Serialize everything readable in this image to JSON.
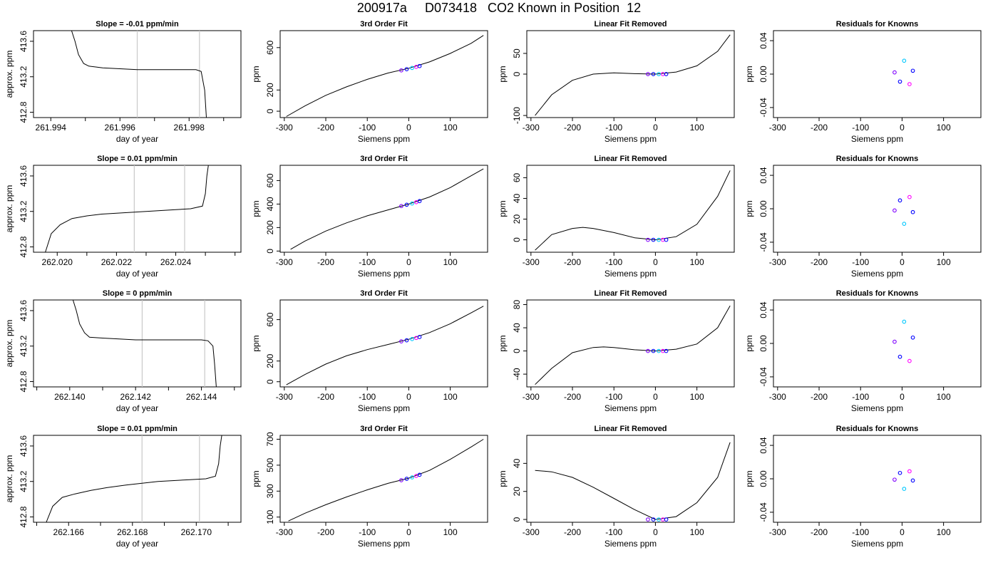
{
  "page_title": "200917a     D073418   CO2 Known in Position  12",
  "chart_data": [
    {
      "type": "line",
      "title": "Slope =  -0.01  ppm/min",
      "xlabel": "day of year",
      "ylabel": "approx. ppm",
      "x_ticks": [
        "261.994",
        "261.996",
        "261.998"
      ],
      "y_ticks": [
        "412.8",
        "413.2",
        "413.6"
      ],
      "xlim": [
        261.9935,
        261.9995
      ],
      "ylim": [
        412.74,
        413.72
      ],
      "vlines": [
        261.9965,
        261.9983
      ],
      "trace": {
        "x": [
          261.9946,
          261.9947,
          261.9948,
          261.99495,
          261.9951,
          261.9953,
          261.9955,
          261.996,
          261.9965,
          261.997,
          261.9975,
          261.998,
          261.9982,
          261.99835,
          261.99845,
          261.9985
        ],
        "y": [
          413.72,
          413.6,
          413.45,
          413.35,
          413.32,
          413.31,
          413.3,
          413.29,
          413.28,
          413.28,
          413.28,
          413.28,
          413.28,
          413.26,
          413.05,
          412.74
        ]
      }
    },
    {
      "type": "line",
      "title": "3rd Order Fit",
      "xlabel": "Siemens ppm",
      "ylabel": "ppm",
      "x_ticks": [
        "-300",
        "-200",
        "-100",
        "0",
        "100"
      ],
      "y_ticks": [
        "0",
        "200",
        "600"
      ],
      "xlim": [
        -310,
        190
      ],
      "ylim": [
        -60,
        760
      ],
      "curve": {
        "x": [
          -295,
          -250,
          -200,
          -150,
          -100,
          -50,
          0,
          50,
          100,
          150,
          180
        ],
        "y": [
          -50,
          50,
          150,
          230,
          300,
          360,
          405,
          465,
          545,
          640,
          715
        ]
      },
      "points": {
        "x": [
          -18,
          -5,
          8,
          18,
          26
        ],
        "y": [
          385,
          396,
          408,
          418,
          426
        ]
      }
    },
    {
      "type": "line",
      "title": "Linear Fit Removed",
      "xlabel": "Siemens ppm",
      "ylabel": "ppm",
      "x_ticks": [
        "-300",
        "-200",
        "-100",
        "0",
        "100"
      ],
      "y_ticks": [
        "-100",
        "0",
        "50"
      ],
      "xlim": [
        -310,
        190
      ],
      "ylim": [
        -105,
        105
      ],
      "curve": {
        "x": [
          -290,
          -250,
          -200,
          -150,
          -100,
          -50,
          0,
          50,
          100,
          150,
          180
        ],
        "y": [
          -100,
          -50,
          -15,
          0,
          3,
          1,
          0,
          5,
          20,
          55,
          95
        ]
      },
      "points": {
        "x": [
          -18,
          -5,
          8,
          18,
          26
        ],
        "y": [
          0,
          0,
          0,
          0,
          0
        ]
      }
    },
    {
      "type": "scatter",
      "title": "Residuals for Knowns",
      "xlabel": "Siemens ppm",
      "ylabel": "ppm",
      "x_ticks": [
        "-300",
        "-200",
        "-100",
        "0",
        "100"
      ],
      "y_ticks": [
        "-0.04",
        "0.00",
        "0.04"
      ],
      "xlim": [
        -310,
        190
      ],
      "ylim": [
        -0.052,
        0.052
      ],
      "points": {
        "x": [
          -18,
          -5,
          5,
          18,
          26
        ],
        "y": [
          0.002,
          -0.009,
          0.016,
          -0.012,
          0.004
        ]
      }
    },
    {
      "type": "line",
      "title": "Slope =  0.01  ppm/min",
      "xlabel": "day of year",
      "ylabel": "approx. ppm",
      "x_ticks": [
        "262.020",
        "262.022",
        "262.024"
      ],
      "y_ticks": [
        "412.8",
        "413.2",
        "413.6"
      ],
      "xlim": [
        262.0192,
        262.0262
      ],
      "ylim": [
        412.74,
        413.72
      ],
      "vlines": [
        262.0226,
        262.0243
      ],
      "trace": {
        "x": [
          262.0196,
          262.0198,
          262.0201,
          262.0205,
          262.021,
          262.0215,
          262.022,
          262.0225,
          262.023,
          262.0235,
          262.024,
          262.0245,
          262.0249,
          262.025,
          262.02505,
          262.0251
        ],
        "y": [
          412.74,
          412.95,
          413.05,
          413.12,
          413.15,
          413.17,
          413.18,
          413.19,
          413.2,
          413.21,
          413.22,
          413.23,
          413.26,
          413.4,
          413.6,
          413.72
        ]
      }
    },
    {
      "type": "line",
      "title": "3rd Order Fit",
      "xlabel": "Siemens ppm",
      "ylabel": "ppm",
      "x_ticks": [
        "-300",
        "-200",
        "-100",
        "0",
        "100"
      ],
      "y_ticks": [
        "0",
        "200",
        "400",
        "600"
      ],
      "xlim": [
        -310,
        190
      ],
      "ylim": [
        -10,
        730
      ],
      "curve": {
        "x": [
          -285,
          -250,
          -200,
          -150,
          -100,
          -50,
          0,
          50,
          100,
          150,
          180
        ],
        "y": [
          15,
          85,
          170,
          240,
          300,
          350,
          400,
          460,
          540,
          640,
          700
        ]
      },
      "points": {
        "x": [
          -18,
          -5,
          8,
          18,
          26
        ],
        "y": [
          383,
          394,
          405,
          416,
          425
        ]
      }
    },
    {
      "type": "line",
      "title": "Linear Fit Removed",
      "xlabel": "Siemens ppm",
      "ylabel": "ppm",
      "x_ticks": [
        "-300",
        "-200",
        "-100",
        "0",
        "100"
      ],
      "y_ticks": [
        "0",
        "20",
        "40",
        "60"
      ],
      "xlim": [
        -310,
        190
      ],
      "ylim": [
        -12,
        72
      ],
      "curve": {
        "x": [
          -290,
          -250,
          -200,
          -175,
          -150,
          -100,
          -50,
          0,
          50,
          100,
          150,
          180
        ],
        "y": [
          -10,
          5,
          11,
          12,
          11,
          7,
          2,
          0,
          3,
          15,
          42,
          67
        ]
      },
      "points": {
        "x": [
          -18,
          -5,
          8,
          18,
          26
        ],
        "y": [
          0,
          0,
          0,
          0,
          0
        ]
      }
    },
    {
      "type": "scatter",
      "title": "Residuals for Knowns",
      "xlabel": "Siemens ppm",
      "ylabel": "ppm",
      "x_ticks": [
        "-300",
        "-200",
        "-100",
        "0",
        "100"
      ],
      "y_ticks": [
        "-0.04",
        "0.00",
        "0.04"
      ],
      "xlim": [
        -310,
        190
      ],
      "ylim": [
        -0.052,
        0.052
      ],
      "points": {
        "x": [
          -18,
          -5,
          5,
          18,
          26
        ],
        "y": [
          -0.002,
          0.01,
          -0.018,
          0.014,
          -0.004
        ]
      }
    },
    {
      "type": "line",
      "title": "Slope =  0  ppm/min",
      "xlabel": "day of year",
      "ylabel": "approx. ppm",
      "x_ticks": [
        "262.140",
        "262.142",
        "262.144"
      ],
      "y_ticks": [
        "412.8",
        "413.2",
        "413.6"
      ],
      "xlim": [
        262.1389,
        262.1452
      ],
      "ylim": [
        412.74,
        413.72
      ],
      "vlines": [
        262.1422,
        262.1441
      ],
      "trace": {
        "x": [
          262.1401,
          262.1402,
          262.1403,
          262.14045,
          262.1406,
          262.141,
          262.1415,
          262.142,
          262.1425,
          262.143,
          262.1435,
          262.144,
          262.1442,
          262.14435,
          262.1444,
          262.14445
        ],
        "y": [
          413.72,
          413.6,
          413.45,
          413.35,
          413.3,
          413.29,
          413.28,
          413.27,
          413.27,
          413.27,
          413.27,
          413.27,
          413.26,
          413.2,
          413.0,
          412.74
        ]
      }
    },
    {
      "type": "line",
      "title": "3rd Order Fit",
      "xlabel": "Siemens ppm",
      "ylabel": "ppm",
      "x_ticks": [
        "-300",
        "-200",
        "-100",
        "0",
        "100"
      ],
      "y_ticks": [
        "0",
        "200",
        "600"
      ],
      "xlim": [
        -310,
        190
      ],
      "ylim": [
        -50,
        790
      ],
      "curve": {
        "x": [
          -295,
          -250,
          -200,
          -150,
          -100,
          -50,
          0,
          50,
          100,
          150,
          180
        ],
        "y": [
          -30,
          70,
          170,
          250,
          310,
          360,
          410,
          475,
          560,
          665,
          730
        ]
      },
      "points": {
        "x": [
          -18,
          -5,
          8,
          18,
          26
        ],
        "y": [
          390,
          400,
          412,
          423,
          432
        ]
      }
    },
    {
      "type": "line",
      "title": "Linear Fit Removed",
      "xlabel": "Siemens ppm",
      "ylabel": "ppm",
      "x_ticks": [
        "-300",
        "-200",
        "-100",
        "0",
        "100"
      ],
      "y_ticks": [
        "-40",
        "0",
        "40",
        "80"
      ],
      "xlim": [
        -310,
        190
      ],
      "ylim": [
        -62,
        88
      ],
      "curve": {
        "x": [
          -290,
          -250,
          -200,
          -150,
          -125,
          -100,
          -50,
          0,
          50,
          100,
          150,
          180
        ],
        "y": [
          -58,
          -30,
          -3,
          6,
          7,
          6,
          2,
          0,
          3,
          12,
          40,
          78
        ]
      },
      "points": {
        "x": [
          -18,
          -5,
          8,
          18,
          26
        ],
        "y": [
          0,
          0,
          0,
          0,
          0
        ]
      }
    },
    {
      "type": "scatter",
      "title": "Residuals for Knowns",
      "xlabel": "Siemens ppm",
      "ylabel": "ppm",
      "x_ticks": [
        "-300",
        "-200",
        "-100",
        "0",
        "100"
      ],
      "y_ticks": [
        "-0.04",
        "0.00",
        "0.04"
      ],
      "xlim": [
        -310,
        190
      ],
      "ylim": [
        -0.052,
        0.052
      ],
      "points": {
        "x": [
          -18,
          -5,
          5,
          18,
          26
        ],
        "y": [
          0.002,
          -0.016,
          0.026,
          -0.021,
          0.007
        ]
      }
    },
    {
      "type": "line",
      "title": "Slope =  0.01  ppm/min",
      "xlabel": "day of year",
      "ylabel": "approx. ppm",
      "x_ticks": [
        "262.166",
        "262.168",
        "262.170"
      ],
      "y_ticks": [
        "412.8",
        "413.2",
        "413.6"
      ],
      "xlim": [
        262.1649,
        262.1714
      ],
      "ylim": [
        412.74,
        413.72
      ],
      "vlines": [
        262.1683,
        262.1701
      ],
      "trace": {
        "x": [
          262.1653,
          262.1655,
          262.1658,
          262.1662,
          262.1667,
          262.1672,
          262.1678,
          262.1683,
          262.1688,
          262.1693,
          262.1698,
          262.1703,
          262.1706,
          262.1707,
          262.17075,
          262.1708
        ],
        "y": [
          412.74,
          412.92,
          413.02,
          413.06,
          413.1,
          413.13,
          413.16,
          413.18,
          413.2,
          413.21,
          413.22,
          413.23,
          413.26,
          413.4,
          413.6,
          413.72
        ]
      }
    },
    {
      "type": "line",
      "title": "3rd Order Fit",
      "xlabel": "Siemens ppm",
      "ylabel": "ppm",
      "x_ticks": [
        "-300",
        "-200",
        "-100",
        "0",
        "100"
      ],
      "y_ticks": [
        "100",
        "300",
        "500",
        "700"
      ],
      "xlim": [
        -310,
        190
      ],
      "ylim": [
        60,
        730
      ],
      "curve": {
        "x": [
          -290,
          -250,
          -200,
          -150,
          -100,
          -50,
          0,
          50,
          100,
          150,
          180
        ],
        "y": [
          70,
          130,
          195,
          255,
          310,
          360,
          400,
          460,
          545,
          640,
          700
        ]
      },
      "points": {
        "x": [
          -18,
          -5,
          8,
          18,
          26
        ],
        "y": [
          384,
          395,
          406,
          417,
          426
        ]
      }
    },
    {
      "type": "line",
      "title": "Linear Fit Removed",
      "xlabel": "Siemens ppm",
      "ylabel": "ppm",
      "x_ticks": [
        "-300",
        "-200",
        "-100",
        "0",
        "100"
      ],
      "y_ticks": [
        "0",
        "20",
        "40"
      ],
      "xlim": [
        -310,
        190
      ],
      "ylim": [
        -2,
        60
      ],
      "curve": {
        "x": [
          -290,
          -250,
          -200,
          -150,
          -100,
          -50,
          0,
          50,
          100,
          150,
          180
        ],
        "y": [
          35,
          34,
          30,
          23,
          15,
          7,
          0,
          2,
          12,
          30,
          55
        ]
      },
      "points": {
        "x": [
          -18,
          -5,
          8,
          18,
          26
        ],
        "y": [
          0,
          0,
          0,
          0,
          0
        ]
      }
    },
    {
      "type": "scatter",
      "title": "Residuals for Knowns",
      "xlabel": "Siemens ppm",
      "ylabel": "ppm",
      "x_ticks": [
        "-300",
        "-200",
        "-100",
        "0",
        "100"
      ],
      "y_ticks": [
        "-0.04",
        "0.00",
        "0.04"
      ],
      "xlim": [
        -310,
        190
      ],
      "ylim": [
        -0.052,
        0.052
      ],
      "points": {
        "x": [
          -18,
          -5,
          5,
          18,
          26
        ],
        "y": [
          -0.001,
          0.007,
          -0.012,
          0.009,
          -0.002
        ]
      }
    }
  ]
}
